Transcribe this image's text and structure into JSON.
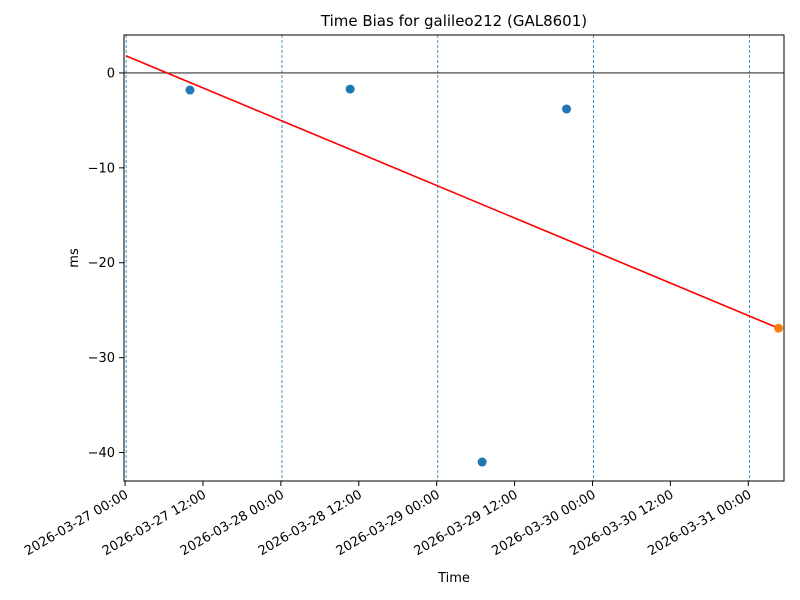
{
  "chart_data": {
    "type": "scatter",
    "title": "Time Bias for galileo212 (GAL8601)",
    "xlabel": "Time",
    "ylabel": "ms",
    "x_ticks": [
      "2026-03-27 00:00",
      "2026-03-27 12:00",
      "2026-03-28 00:00",
      "2026-03-28 12:00",
      "2026-03-29 00:00",
      "2026-03-29 12:00",
      "2026-03-30 00:00",
      "2026-03-30 12:00",
      "2026-03-31 00:00"
    ],
    "y_ticks": [
      0,
      -10,
      -20,
      -30,
      -40
    ],
    "y_tick_labels": [
      "0",
      "−10",
      "−20",
      "−30",
      "−40"
    ],
    "xlim": [
      "2026-03-26 23:50",
      "2026-03-31 05:30"
    ],
    "ylim": [
      -43,
      4
    ],
    "grid": false,
    "zero_line": true,
    "series": [
      {
        "color": "#1f77b4",
        "points": [
          {
            "x": "2026-03-27 10:00",
            "y": -1.8
          },
          {
            "x": "2026-03-28 10:40",
            "y": -1.7
          },
          {
            "x": "2026-03-29 07:00",
            "y": -41.0
          },
          {
            "x": "2026-03-29 20:00",
            "y": -3.8
          }
        ]
      },
      {
        "color": "#ff7f0e",
        "points": [
          {
            "x": "2026-03-31 04:40",
            "y": -26.9
          }
        ]
      }
    ],
    "trend_line": {
      "color": "#ff0000",
      "start": {
        "x": "2026-03-27 00:10",
        "y": 1.8
      },
      "end": {
        "x": "2026-03-31 04:40",
        "y": -26.9
      }
    },
    "vertical_markers": {
      "color": "#1f77b4",
      "style": "dashed",
      "x": [
        "2026-03-27 00:10",
        "2026-03-28 00:10",
        "2026-03-29 00:10",
        "2026-03-30 00:10",
        "2026-03-31 00:10"
      ]
    }
  }
}
